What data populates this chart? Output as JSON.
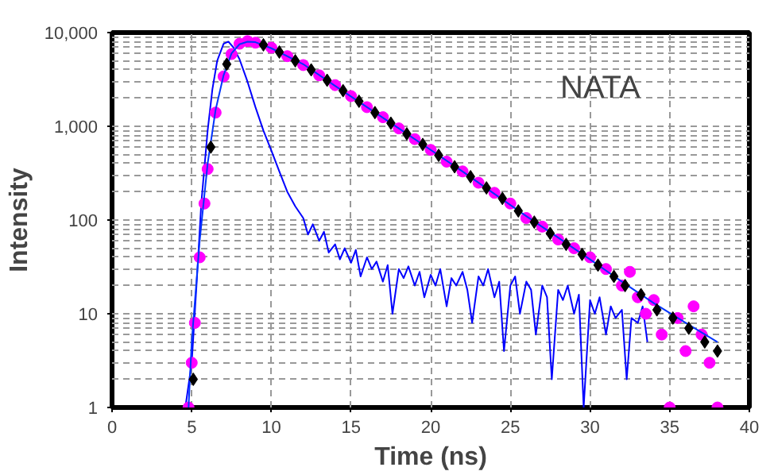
{
  "chart_data": {
    "type": "line",
    "xlabel": "Time (ns)",
    "ylabel": "Intensity",
    "annotations": [
      "NATA"
    ],
    "log": "y",
    "grid": true,
    "xlim": [
      0,
      40
    ],
    "xticks": [
      0,
      5,
      10,
      15,
      20,
      25,
      30,
      35,
      40
    ],
    "ylim": [
      1,
      10000
    ],
    "yticks": [
      1,
      10,
      100,
      {
        "value": 1000,
        "label": "1,000"
      },
      {
        "value": 10000,
        "label": "10,000"
      }
    ],
    "series": [
      {
        "color": "#0000ff",
        "line_style": "solid",
        "x": [
          4.6,
          5,
          5.3,
          5.6,
          6,
          6.3,
          6.6,
          7,
          7.3,
          7.6,
          8,
          8.5,
          9,
          9.5,
          10,
          10.5,
          11,
          11.5,
          12,
          12.3,
          12.6,
          13,
          13.3,
          13.6,
          14,
          14.3,
          14.6,
          15,
          15.3,
          15.6,
          16,
          16.3,
          16.6,
          17,
          17.3,
          17.6,
          18,
          18.3,
          18.6,
          19,
          19.3,
          19.6,
          20,
          20.3,
          20.6,
          21,
          21.3,
          21.6,
          22,
          22.3,
          22.6,
          23,
          23.3,
          23.6,
          24,
          24.3,
          24.6,
          25,
          25.3,
          25.6,
          26,
          26.3,
          26.6,
          27,
          27.3,
          27.6,
          28,
          28.3,
          28.6,
          29,
          29.3,
          29.6,
          30,
          30.3,
          30.6,
          31,
          31.3,
          31.6,
          32,
          32.3,
          32.6,
          33,
          33.3,
          33.6
        ],
        "values": [
          1,
          3,
          20,
          150,
          900,
          2500,
          5000,
          7600,
          8000,
          7000,
          5200,
          3000,
          1600,
          900,
          550,
          330,
          200,
          140,
          105,
          70,
          90,
          60,
          75,
          45,
          55,
          38,
          50,
          35,
          48,
          25,
          40,
          30,
          36,
          22,
          33,
          10,
          30,
          24,
          32,
          20,
          28,
          15,
          26,
          20,
          30,
          12,
          24,
          20,
          28,
          18,
          8,
          25,
          20,
          30,
          15,
          22,
          4,
          20,
          25,
          10,
          22,
          18,
          6,
          20,
          15,
          2,
          18,
          14,
          20,
          10,
          16,
          1,
          14,
          10,
          15,
          6,
          12,
          9,
          11,
          2,
          9,
          8,
          12,
          5
        ]
      },
      {
        "type": "scatter",
        "marker": "diamond",
        "color": "#000000",
        "x": [
          5.1,
          6.2,
          7.2,
          9.5,
          10.5,
          11.5,
          12.5,
          13.5,
          14.5,
          15.5,
          16.5,
          17.5,
          18.5,
          19.5,
          20.5,
          21.5,
          22.5,
          23.5,
          24.5,
          25.5,
          26.5,
          27.5,
          28.5,
          29.5,
          30.5,
          31.5,
          32.2,
          33.2,
          34.2,
          35.2,
          36.2,
          37.2,
          38
        ],
        "values": [
          2,
          600,
          4600,
          7400,
          6200,
          5000,
          4000,
          3100,
          2400,
          1850,
          1400,
          1080,
          830,
          640,
          490,
          370,
          290,
          220,
          170,
          125,
          95,
          72,
          55,
          43,
          33,
          25,
          20,
          16,
          11,
          9,
          7,
          5,
          4
        ]
      },
      {
        "type": "scatter",
        "marker": "circle",
        "color": "#ff00ff",
        "x": [
          4.8,
          5,
          5.2,
          5.5,
          5.8,
          6,
          6.5,
          7,
          7.5,
          8,
          8.5,
          9,
          10,
          11,
          12,
          13,
          14,
          15,
          16,
          17,
          18,
          19,
          20,
          21,
          22,
          23,
          24,
          25,
          26,
          27,
          28,
          29,
          30,
          31,
          32,
          32.5,
          33,
          33.5,
          34,
          34.5,
          35,
          35.5,
          36,
          36.5,
          37,
          37.5,
          38
        ],
        "values": [
          1,
          3,
          8,
          40,
          150,
          350,
          1400,
          3400,
          5900,
          7600,
          8100,
          7800,
          6900,
          5600,
          4500,
          3500,
          2750,
          2100,
          1600,
          1250,
          950,
          730,
          560,
          420,
          330,
          250,
          195,
          150,
          105,
          85,
          62,
          50,
          40,
          30,
          20,
          28,
          15,
          10,
          14,
          6,
          1,
          9,
          4,
          12,
          6,
          3,
          1
        ]
      },
      {
        "color": "#0033ff",
        "line_style": "solid",
        "x": [
          4.8,
          5,
          5.5,
          6,
          6.5,
          7,
          7.5,
          8,
          8.5,
          9,
          10,
          12,
          14,
          16,
          18,
          20,
          22,
          24,
          26,
          28,
          30,
          32,
          34,
          36,
          38
        ],
        "values": [
          1,
          5,
          60,
          400,
          1500,
          3500,
          6000,
          7500,
          8000,
          7900,
          6800,
          4600,
          2700,
          1600,
          950,
          560,
          330,
          190,
          110,
          65,
          38,
          22,
          13,
          8,
          5
        ]
      }
    ]
  }
}
